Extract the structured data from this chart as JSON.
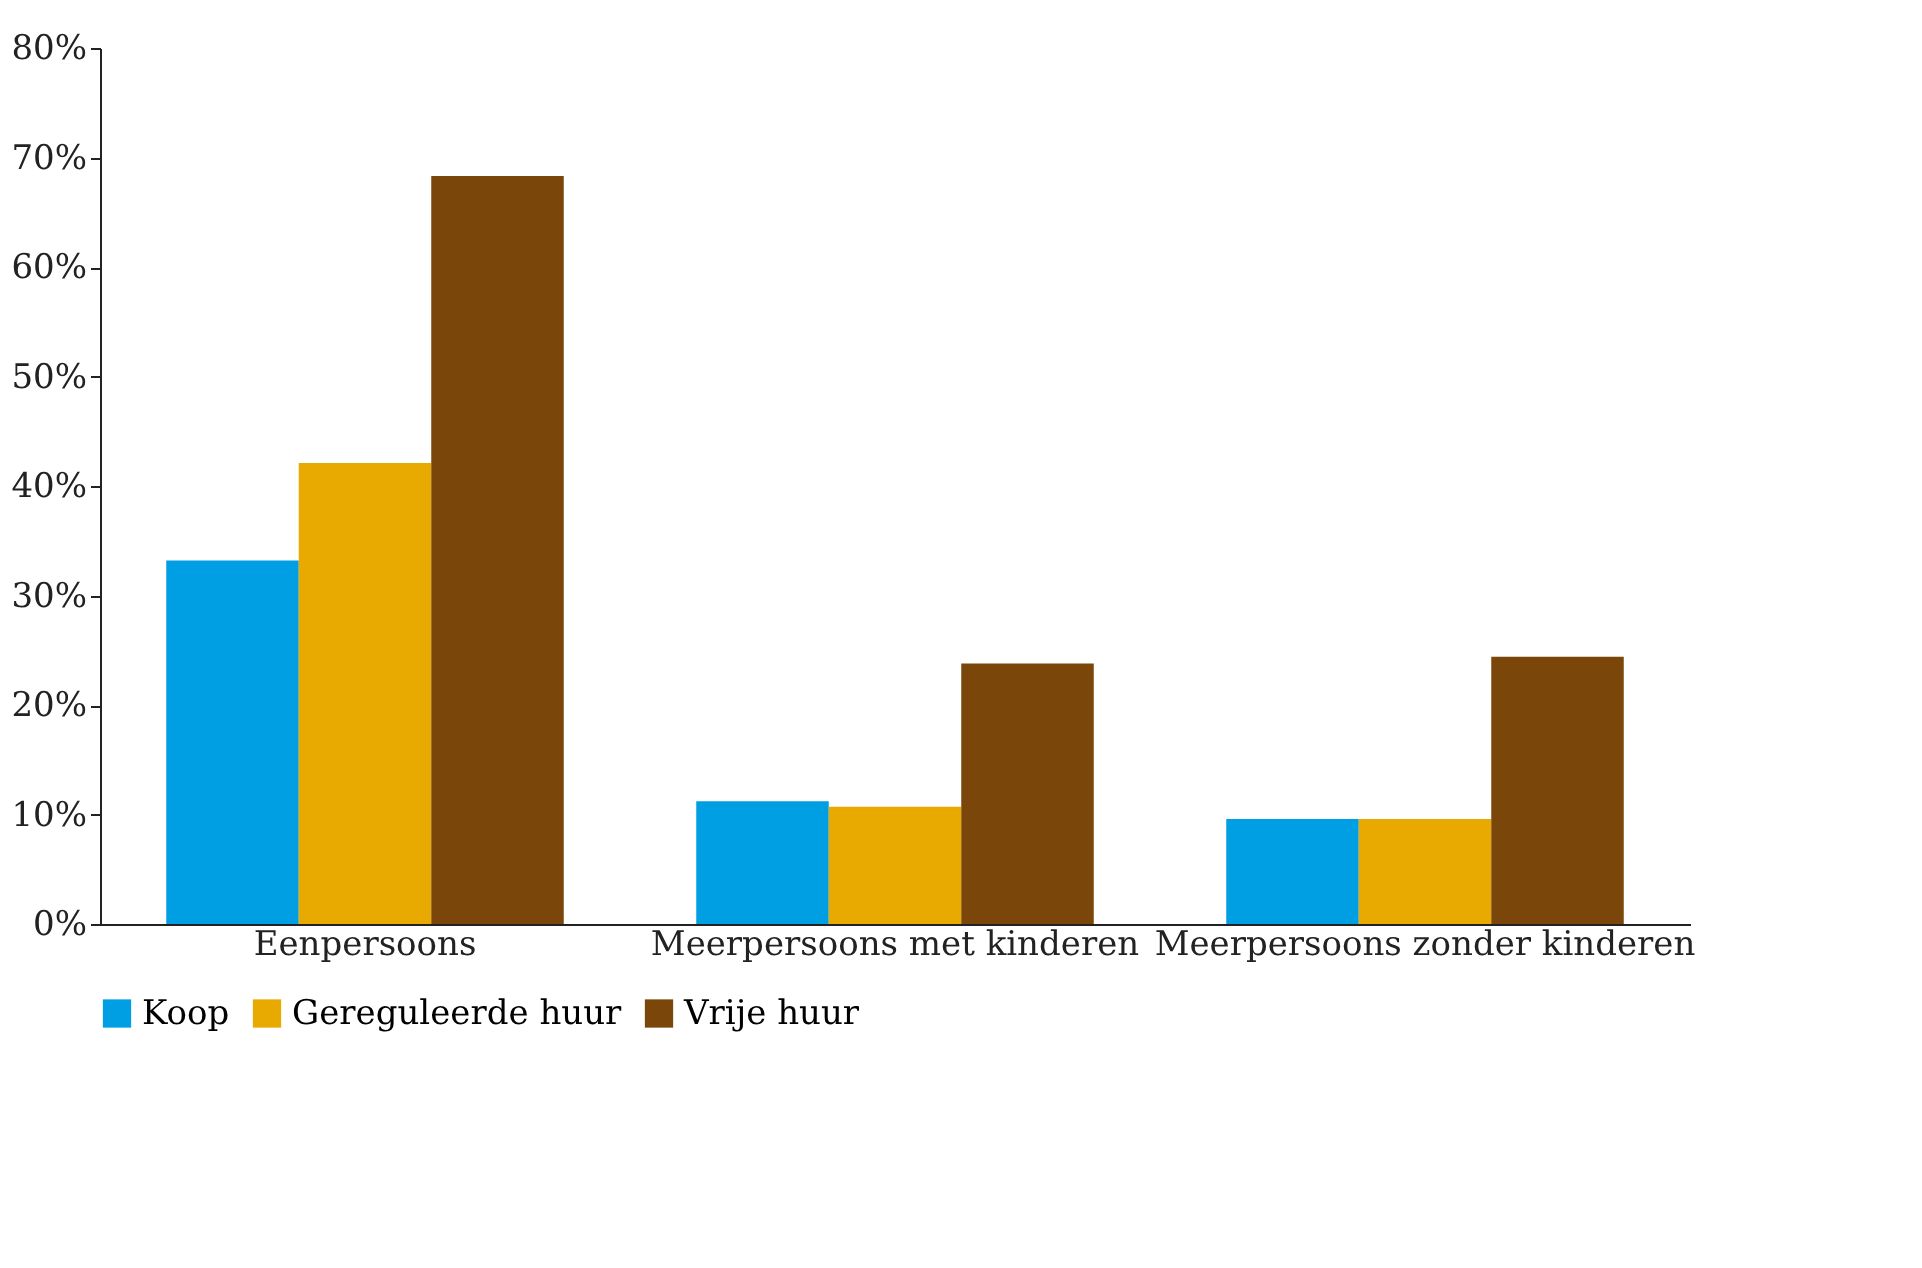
{
  "chart_data": {
    "type": "bar",
    "categories": [
      "Eenpersoons",
      "Meerpersoons met kinderen",
      "Meerpersoons zonder kinderen"
    ],
    "series": [
      {
        "name": "Koop",
        "color": "#009fe3",
        "values": [
          33.2,
          11.2,
          9.6
        ]
      },
      {
        "name": "Gereguleerde huur",
        "color": "#e8a900",
        "values": [
          42.1,
          10.7,
          9.6
        ]
      },
      {
        "name": "Vrije huur",
        "color": "#7a4609",
        "values": [
          68.3,
          23.8,
          24.4
        ]
      }
    ],
    "ylim": [
      0,
      80
    ],
    "yticks": [
      {
        "value": 0,
        "label": "0%"
      },
      {
        "value": 10,
        "label": "10%"
      },
      {
        "value": 20,
        "label": "20%"
      },
      {
        "value": 30,
        "label": "30%"
      },
      {
        "value": 40,
        "label": "40%"
      },
      {
        "value": 50,
        "label": "50%"
      },
      {
        "value": 60,
        "label": "60%"
      },
      {
        "value": 70,
        "label": "70%"
      },
      {
        "value": 80,
        "label": "80%"
      }
    ],
    "grid": false,
    "legend": "bottom"
  }
}
